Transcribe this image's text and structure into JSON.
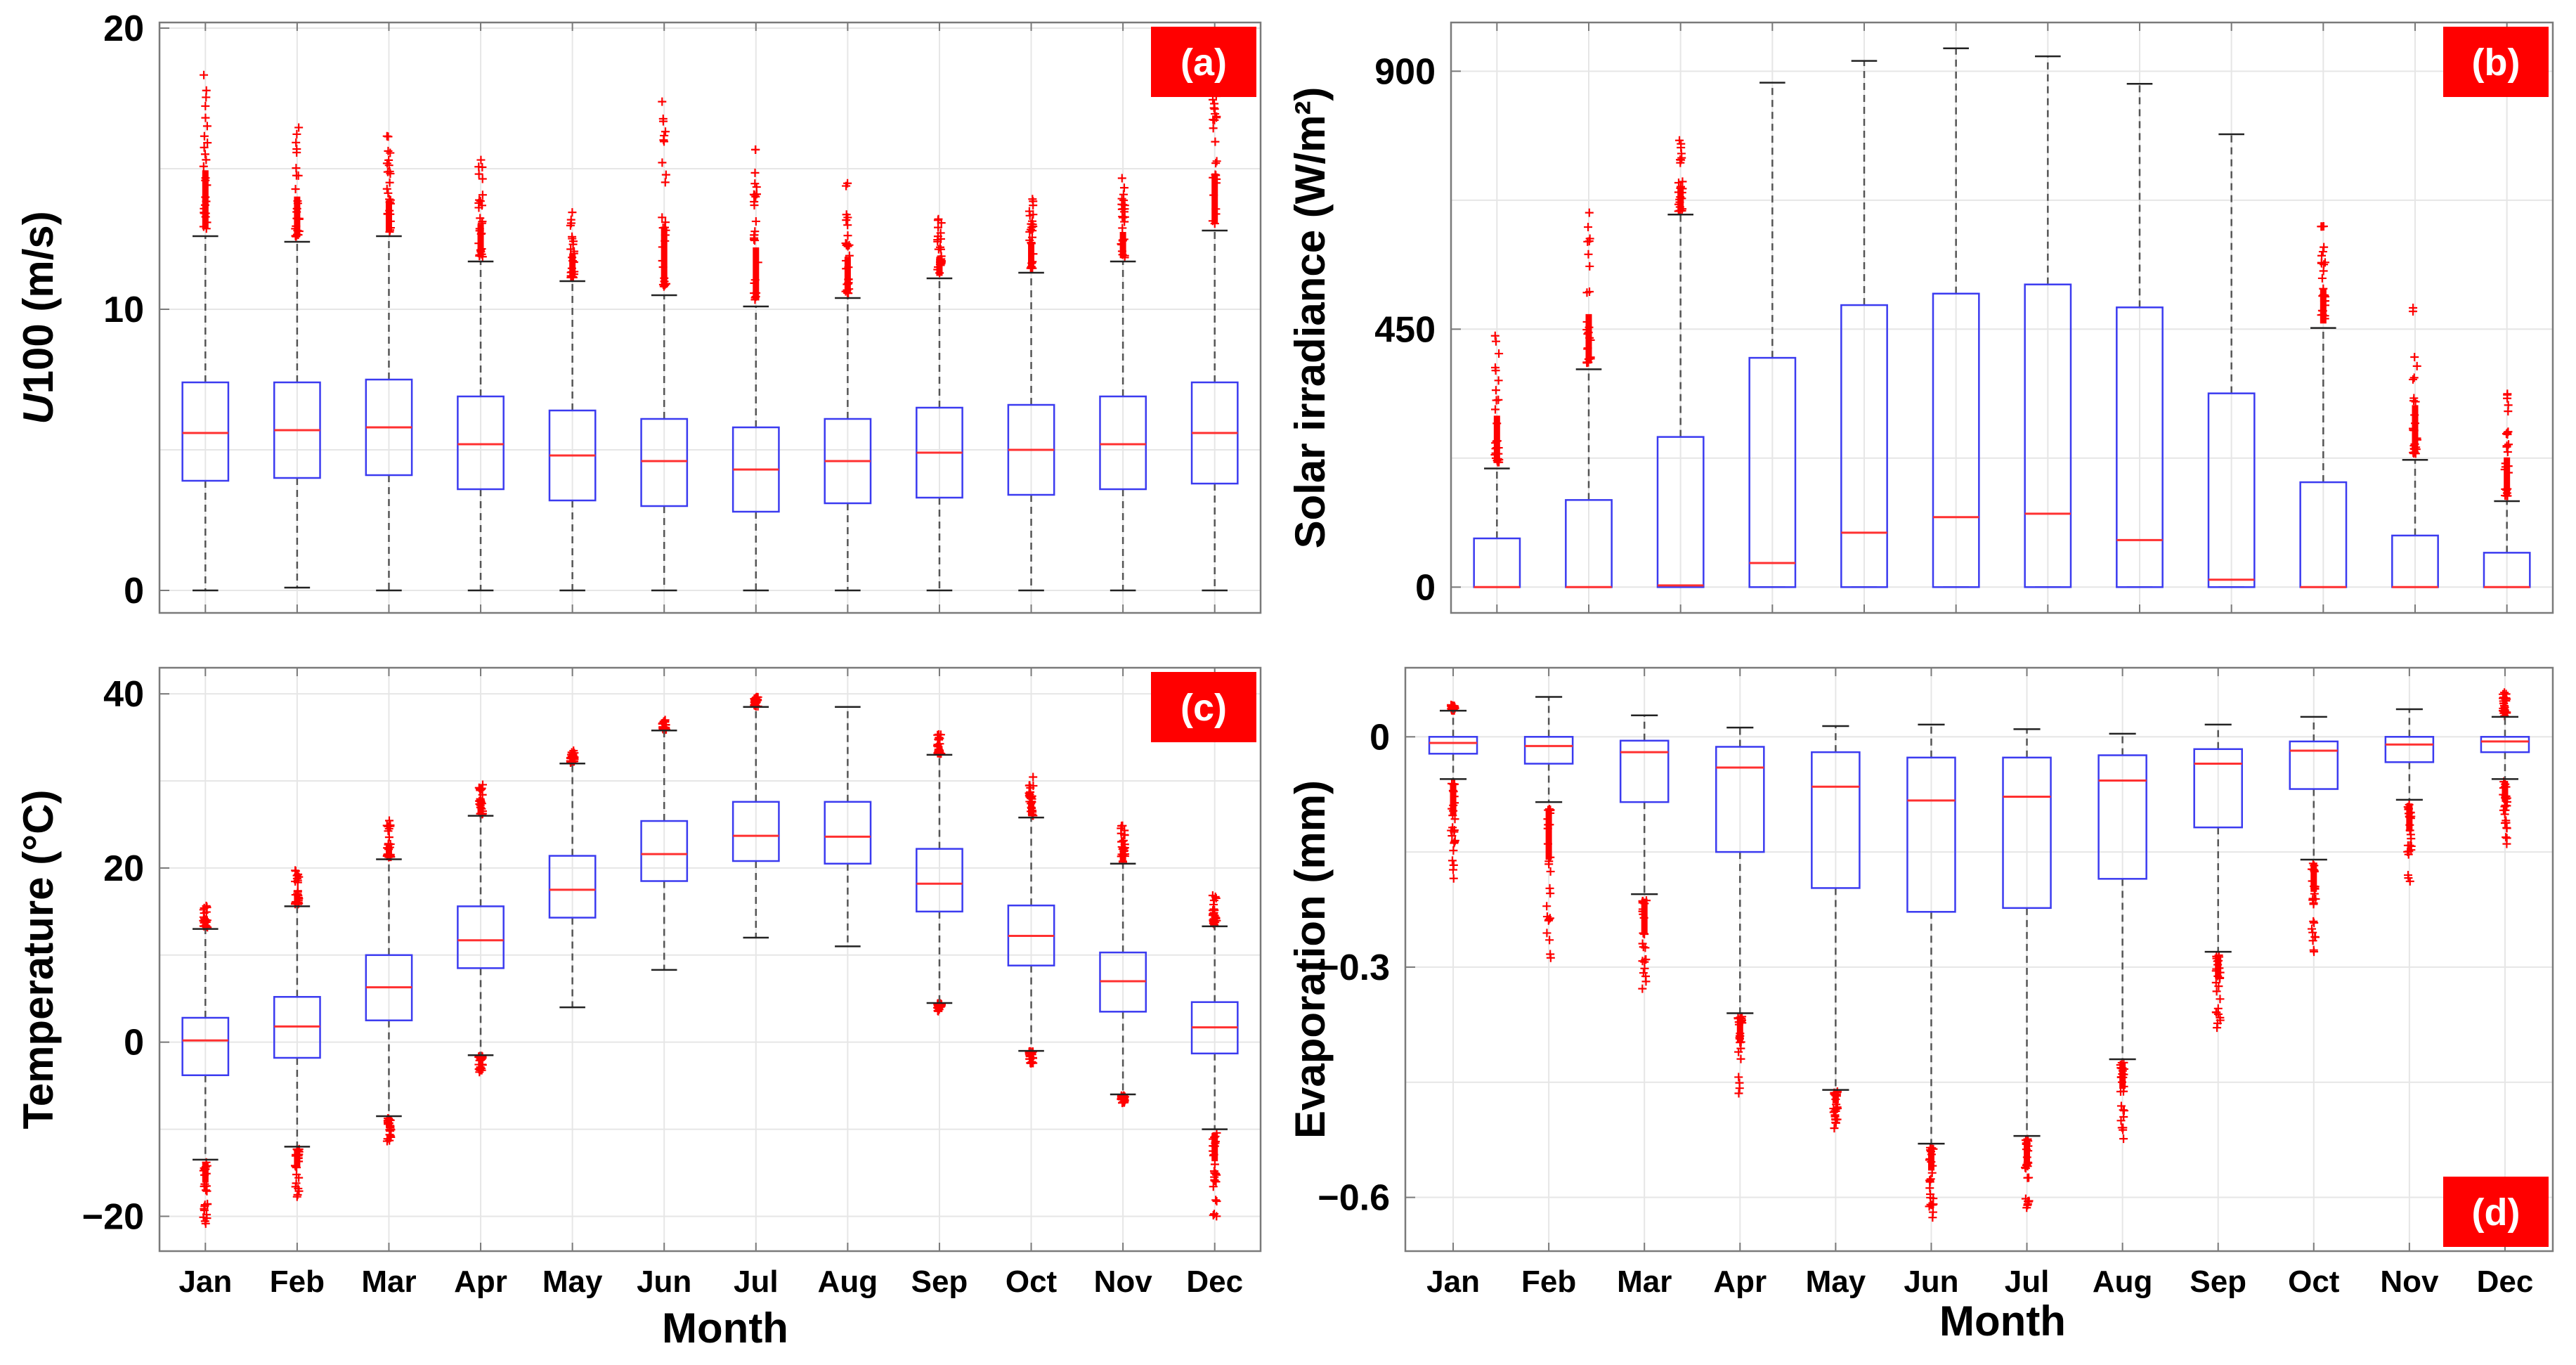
{
  "figure": {
    "xlabel": "Month",
    "colors": {
      "box": "#3b3bf0",
      "median": "#ff3030",
      "whisker": "#555555",
      "outlier": "#ff0000",
      "panel_label_bg": "#ff0000",
      "grid": "#e6e6e6",
      "frame": "#7a7a7a"
    }
  },
  "chart_data": [
    {
      "id": "a",
      "type": "boxplot",
      "panel_label": "(a)",
      "ylabel_italic": "U",
      "ylabel_rest": "100 (m/s)",
      "ylabel": "U100 (m/s)",
      "ylim": [
        -0.8,
        20.2
      ],
      "yticks": [
        0,
        10,
        20
      ],
      "ytick_labels": [
        "0",
        "10",
        "20"
      ],
      "panel_label_position": "top-right",
      "categories": [
        "Jan",
        "Feb",
        "Mar",
        "Apr",
        "May",
        "Jun",
        "Jul",
        "Aug",
        "Sep",
        "Oct",
        "Nov",
        "Dec"
      ],
      "boxes": [
        {
          "whislo": 0.0,
          "q1": 3.9,
          "med": 5.6,
          "q3": 7.4,
          "whishi": 12.6,
          "out_lo": null,
          "out_hi": 19.3
        },
        {
          "whislo": 0.1,
          "q1": 4.0,
          "med": 5.7,
          "q3": 7.4,
          "whishi": 12.4,
          "out_lo": null,
          "out_hi": 17.0
        },
        {
          "whislo": 0.0,
          "q1": 4.1,
          "med": 5.8,
          "q3": 7.5,
          "whishi": 12.6,
          "out_lo": null,
          "out_hi": 16.2
        },
        {
          "whislo": 0.0,
          "q1": 3.6,
          "med": 5.2,
          "q3": 6.9,
          "whishi": 11.7,
          "out_lo": null,
          "out_hi": 15.5
        },
        {
          "whislo": 0.0,
          "q1": 3.2,
          "med": 4.8,
          "q3": 6.4,
          "whishi": 11.0,
          "out_lo": null,
          "out_hi": 13.8
        },
        {
          "whislo": 0.0,
          "q1": 3.0,
          "med": 4.6,
          "q3": 6.1,
          "whishi": 10.5,
          "out_lo": null,
          "out_hi": 17.4
        },
        {
          "whislo": 0.0,
          "q1": 2.8,
          "med": 4.3,
          "q3": 5.8,
          "whishi": 10.1,
          "out_lo": null,
          "out_hi": 16.1
        },
        {
          "whislo": 0.0,
          "q1": 3.1,
          "med": 4.6,
          "q3": 6.1,
          "whishi": 10.4,
          "out_lo": null,
          "out_hi": 14.6
        },
        {
          "whislo": 0.0,
          "q1": 3.3,
          "med": 4.9,
          "q3": 6.5,
          "whishi": 11.1,
          "out_lo": null,
          "out_hi": 13.3
        },
        {
          "whislo": 0.0,
          "q1": 3.4,
          "med": 5.0,
          "q3": 6.6,
          "whishi": 11.3,
          "out_lo": null,
          "out_hi": 14.4
        },
        {
          "whislo": 0.0,
          "q1": 3.6,
          "med": 5.2,
          "q3": 6.9,
          "whishi": 11.7,
          "out_lo": null,
          "out_hi": 14.7
        },
        {
          "whislo": 0.0,
          "q1": 3.8,
          "med": 5.6,
          "q3": 7.4,
          "whishi": 12.8,
          "out_lo": null,
          "out_hi": 18.6
        }
      ]
    },
    {
      "id": "b",
      "type": "boxplot",
      "panel_label": "(b)",
      "ylabel": "Solar irradiance (W/m²)",
      "ylabel_italic": "",
      "ylabel_rest": "Solar irradiance (W/m²)",
      "ylim": [
        -45,
        985
      ],
      "yticks": [
        0,
        450,
        900
      ],
      "ytick_labels": [
        "0",
        "450",
        "900"
      ],
      "panel_label_position": "top-right",
      "categories": [
        "Jan",
        "Feb",
        "Mar",
        "Apr",
        "May",
        "Jun",
        "Jul",
        "Aug",
        "Sep",
        "Oct",
        "Nov",
        "Dec"
      ],
      "boxes": [
        {
          "whislo": 0,
          "q1": 0,
          "med": 0,
          "q3": 85,
          "whishi": 207,
          "out_lo": null,
          "out_hi": 470
        },
        {
          "whislo": 0,
          "q1": 0,
          "med": 0,
          "q3": 152,
          "whishi": 380,
          "out_lo": null,
          "out_hi": 655
        },
        {
          "whislo": 0,
          "q1": 0,
          "med": 3,
          "q3": 262,
          "whishi": 650,
          "out_lo": null,
          "out_hi": 780
        },
        {
          "whislo": 0,
          "q1": 0,
          "med": 42,
          "q3": 400,
          "whishi": 880,
          "out_lo": null,
          "out_hi": null
        },
        {
          "whislo": 0,
          "q1": 0,
          "med": 95,
          "q3": 492,
          "whishi": 918,
          "out_lo": null,
          "out_hi": null
        },
        {
          "whislo": 0,
          "q1": 0,
          "med": 122,
          "q3": 512,
          "whishi": 940,
          "out_lo": null,
          "out_hi": null
        },
        {
          "whislo": 0,
          "q1": 0,
          "med": 128,
          "q3": 528,
          "whishi": 926,
          "out_lo": null,
          "out_hi": null
        },
        {
          "whislo": 0,
          "q1": 0,
          "med": 82,
          "q3": 488,
          "whishi": 878,
          "out_lo": null,
          "out_hi": null
        },
        {
          "whislo": 0,
          "q1": 0,
          "med": 13,
          "q3": 338,
          "whishi": 790,
          "out_lo": null,
          "out_hi": null
        },
        {
          "whislo": 0,
          "q1": 0,
          "med": 0,
          "q3": 183,
          "whishi": 452,
          "out_lo": null,
          "out_hi": 648
        },
        {
          "whislo": 0,
          "q1": 0,
          "med": 0,
          "q3": 90,
          "whishi": 222,
          "out_lo": null,
          "out_hi": 495
        },
        {
          "whislo": 0,
          "q1": 0,
          "med": 0,
          "q3": 60,
          "whishi": 150,
          "out_lo": null,
          "out_hi": 368
        }
      ]
    },
    {
      "id": "c",
      "type": "boxplot",
      "panel_label": "(c)",
      "ylabel": "Temperature (°C)",
      "ylabel_italic": "",
      "ylabel_rest": "Temperature (°C)",
      "ylim": [
        -24,
        43
      ],
      "yticks": [
        -20,
        0,
        20,
        40
      ],
      "ytick_labels": [
        "−20",
        "0",
        "20",
        "40"
      ],
      "panel_label_position": "top-right",
      "categories": [
        "Jan",
        "Feb",
        "Mar",
        "Apr",
        "May",
        "Jun",
        "Jul",
        "Aug",
        "Sep",
        "Oct",
        "Nov",
        "Dec"
      ],
      "boxes": [
        {
          "whislo": -13.5,
          "q1": -3.8,
          "med": 0.2,
          "q3": 2.8,
          "whishi": 13.0,
          "out_lo": -21.0,
          "out_hi": 15.8
        },
        {
          "whislo": -12.0,
          "q1": -1.8,
          "med": 1.8,
          "q3": 5.2,
          "whishi": 15.6,
          "out_lo": -19.0,
          "out_hi": 20.0
        },
        {
          "whislo": -8.5,
          "q1": 2.5,
          "med": 6.3,
          "q3": 10.0,
          "whishi": 21.0,
          "out_lo": -11.5,
          "out_hi": 25.5
        },
        {
          "whislo": -1.5,
          "q1": 8.5,
          "med": 11.7,
          "q3": 15.6,
          "whishi": 26.0,
          "out_lo": -3.5,
          "out_hi": 30.0
        },
        {
          "whislo": 4.0,
          "q1": 14.3,
          "med": 17.5,
          "q3": 21.4,
          "whishi": 32.0,
          "out_lo": null,
          "out_hi": 33.5
        },
        {
          "whislo": 8.3,
          "q1": 18.5,
          "med": 21.6,
          "q3": 25.4,
          "whishi": 35.8,
          "out_lo": null,
          "out_hi": 37.0
        },
        {
          "whislo": 12.0,
          "q1": 20.8,
          "med": 23.7,
          "q3": 27.6,
          "whishi": 38.5,
          "out_lo": null,
          "out_hi": 39.8
        },
        {
          "whislo": 11.0,
          "q1": 20.5,
          "med": 23.6,
          "q3": 27.6,
          "whishi": 38.5,
          "out_lo": null,
          "out_hi": null
        },
        {
          "whislo": 4.5,
          "q1": 15.0,
          "med": 18.2,
          "q3": 22.2,
          "whishi": 33.0,
          "out_lo": 3.5,
          "out_hi": 35.5
        },
        {
          "whislo": -1.0,
          "q1": 8.8,
          "med": 12.2,
          "q3": 15.7,
          "whishi": 25.8,
          "out_lo": -2.5,
          "out_hi": 30.5
        },
        {
          "whislo": -6.0,
          "q1": 3.5,
          "med": 7.0,
          "q3": 10.3,
          "whishi": 20.5,
          "out_lo": -7.0,
          "out_hi": 25.0
        },
        {
          "whislo": -10.0,
          "q1": -1.3,
          "med": 1.7,
          "q3": 4.6,
          "whishi": 13.3,
          "out_lo": -20.5,
          "out_hi": 17.0
        }
      ]
    },
    {
      "id": "d",
      "type": "boxplot",
      "panel_label": "(d)",
      "ylabel": "Evaporation (mm)",
      "ylabel_italic": "",
      "ylabel_rest": "Evaporation (mm)",
      "ylim": [
        -0.67,
        0.09
      ],
      "yticks": [
        -0.6,
        -0.3,
        0
      ],
      "ytick_labels": [
        "−0.6",
        "−0.3",
        "0"
      ],
      "panel_label_position": "bottom-right",
      "categories": [
        "Jan",
        "Feb",
        "Mar",
        "Apr",
        "May",
        "Jun",
        "Jul",
        "Aug",
        "Sep",
        "Oct",
        "Nov",
        "Dec"
      ],
      "boxes": [
        {
          "whislo": -0.055,
          "q1": -0.022,
          "med": -0.008,
          "q3": 0.0,
          "whishi": 0.034,
          "out_lo": -0.19,
          "out_hi": 0.042
        },
        {
          "whislo": -0.085,
          "q1": -0.035,
          "med": -0.012,
          "q3": 0.0,
          "whishi": 0.052,
          "out_lo": -0.3,
          "out_hi": null
        },
        {
          "whislo": -0.205,
          "q1": -0.085,
          "med": -0.02,
          "q3": -0.005,
          "whishi": 0.028,
          "out_lo": -0.35,
          "out_hi": null
        },
        {
          "whislo": -0.36,
          "q1": -0.15,
          "med": -0.04,
          "q3": -0.013,
          "whishi": 0.012,
          "out_lo": -0.47,
          "out_hi": null
        },
        {
          "whislo": -0.46,
          "q1": -0.197,
          "med": -0.065,
          "q3": -0.02,
          "whishi": 0.014,
          "out_lo": -0.51,
          "out_hi": null
        },
        {
          "whislo": -0.53,
          "q1": -0.228,
          "med": -0.083,
          "q3": -0.027,
          "whishi": 0.016,
          "out_lo": -0.63,
          "out_hi": null
        },
        {
          "whislo": -0.52,
          "q1": -0.223,
          "med": -0.078,
          "q3": -0.027,
          "whishi": 0.01,
          "out_lo": -0.62,
          "out_hi": null
        },
        {
          "whislo": -0.42,
          "q1": -0.185,
          "med": -0.057,
          "q3": -0.024,
          "whishi": 0.004,
          "out_lo": -0.53,
          "out_hi": null
        },
        {
          "whislo": -0.28,
          "q1": -0.118,
          "med": -0.035,
          "q3": -0.016,
          "whishi": 0.016,
          "out_lo": -0.38,
          "out_hi": null
        },
        {
          "whislo": -0.16,
          "q1": -0.068,
          "med": -0.018,
          "q3": -0.006,
          "whishi": 0.026,
          "out_lo": -0.28,
          "out_hi": null
        },
        {
          "whislo": -0.082,
          "q1": -0.033,
          "med": -0.01,
          "q3": 0.0,
          "whishi": 0.036,
          "out_lo": -0.2,
          "out_hi": null
        },
        {
          "whislo": -0.055,
          "q1": -0.02,
          "med": -0.006,
          "q3": 0.0,
          "whishi": 0.026,
          "out_lo": -0.14,
          "out_hi": 0.058
        }
      ]
    }
  ]
}
